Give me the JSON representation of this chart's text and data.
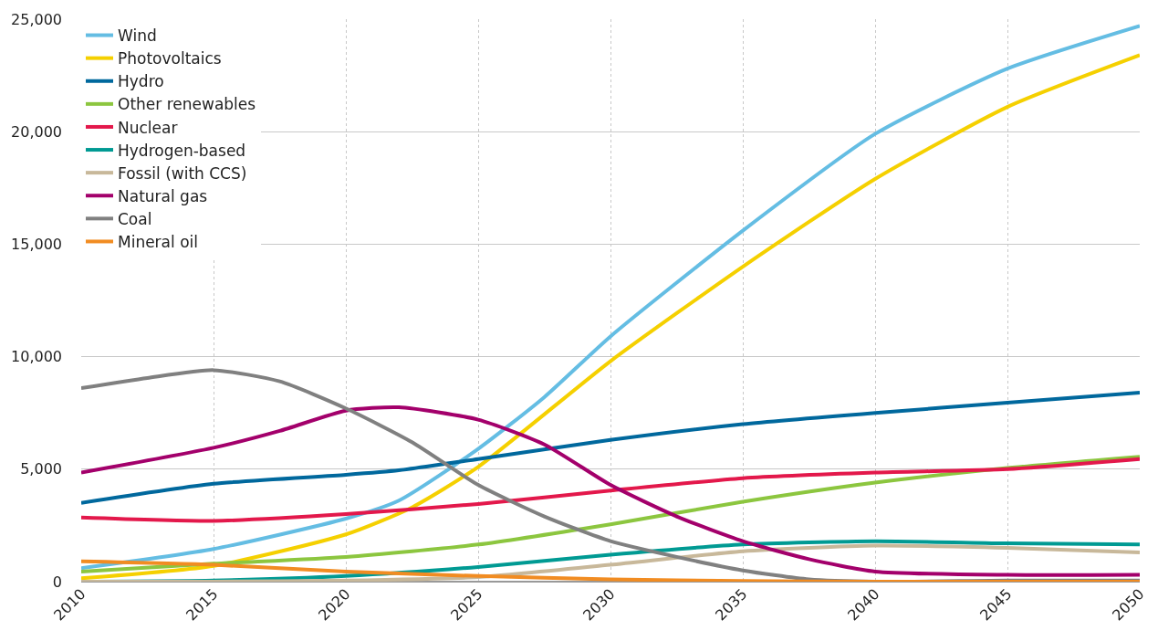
{
  "chart_data": {
    "type": "line",
    "x": [
      2010,
      2015,
      2020,
      2025,
      2030,
      2035,
      2040,
      2045,
      2050
    ],
    "series": [
      {
        "name": "Wind",
        "color": "#64bde3",
        "x": [
          2010,
          2015,
          2020,
          2022,
          2025,
          2027.5,
          2030,
          2035,
          2040,
          2045,
          2050
        ],
        "values": [
          600,
          1450,
          2800,
          3600,
          5900,
          8200,
          10900,
          15600,
          19900,
          22800,
          24700
        ]
      },
      {
        "name": "Photovoltaics",
        "color": "#f5d000",
        "x": [
          2010,
          2015,
          2020,
          2022.5,
          2025,
          2030,
          2035,
          2040,
          2045,
          2050
        ],
        "values": [
          150,
          700,
          2100,
          3300,
          5100,
          9800,
          14000,
          17900,
          21100,
          23400
        ]
      },
      {
        "name": "Hydro",
        "color": "#00689d",
        "x": [
          2010,
          2015,
          2020,
          2022,
          2025,
          2030,
          2035,
          2040,
          2045,
          2050
        ],
        "values": [
          3500,
          4350,
          4750,
          4950,
          5450,
          6300,
          7000,
          7500,
          7950,
          8400
        ]
      },
      {
        "name": "Other renewables",
        "color": "#8cc63f",
        "values": [
          450,
          800,
          1100,
          1650,
          2550,
          3550,
          4400,
          5050,
          5550
        ]
      },
      {
        "name": "Nuclear",
        "color": "#e3184b",
        "values": [
          2850,
          2700,
          3000,
          3450,
          4050,
          4600,
          4850,
          5000,
          5450
        ]
      },
      {
        "name": "Hydrogen-based",
        "color": "#009a93",
        "values": [
          0,
          50,
          250,
          650,
          1200,
          1650,
          1800,
          1700,
          1650
        ]
      },
      {
        "name": "Fossil (with CCS)",
        "color": "#c8b89a",
        "values": [
          0,
          0,
          50,
          200,
          750,
          1350,
          1600,
          1500,
          1300
        ]
      },
      {
        "name": "Natural gas",
        "color": "#a3006b",
        "x": [
          2010,
          2015,
          2017.5,
          2020,
          2022,
          2025,
          2027.5,
          2030,
          2032.5,
          2035,
          2037.5,
          2040,
          2045,
          2050
        ],
        "values": [
          4850,
          5950,
          6700,
          7600,
          7750,
          7200,
          6100,
          4300,
          2900,
          1800,
          1000,
          450,
          300,
          300
        ]
      },
      {
        "name": "Coal",
        "color": "#808080",
        "x": [
          2010,
          2012.5,
          2015,
          2017.5,
          2020,
          2022.5,
          2025,
          2027.5,
          2030,
          2032.5,
          2035,
          2037.5,
          2040,
          2045,
          2050
        ],
        "values": [
          8600,
          9050,
          9400,
          8900,
          7700,
          6200,
          4300,
          2900,
          1800,
          1100,
          500,
          100,
          0,
          50,
          50
        ]
      },
      {
        "name": "Mineral oil",
        "color": "#f18c22",
        "values": [
          900,
          750,
          450,
          250,
          100,
          30,
          0,
          0,
          0
        ]
      }
    ],
    "xlim": [
      2010,
      2050
    ],
    "xticks": [
      2010,
      2015,
      2020,
      2025,
      2030,
      2035,
      2040,
      2045,
      2050
    ],
    "ylim": [
      0,
      25000
    ],
    "yticks": [
      {
        "value": 0,
        "label": "0"
      },
      {
        "value": 5000,
        "label": "5,000"
      },
      {
        "value": 10000,
        "label": "10,000"
      },
      {
        "value": 15000,
        "label": "15,000"
      },
      {
        "value": 20000,
        "label": "20,000"
      },
      {
        "value": 25000,
        "label": "25,000"
      }
    ],
    "grid": true,
    "legend": "top left",
    "marker": "none",
    "line_style": "solid"
  }
}
